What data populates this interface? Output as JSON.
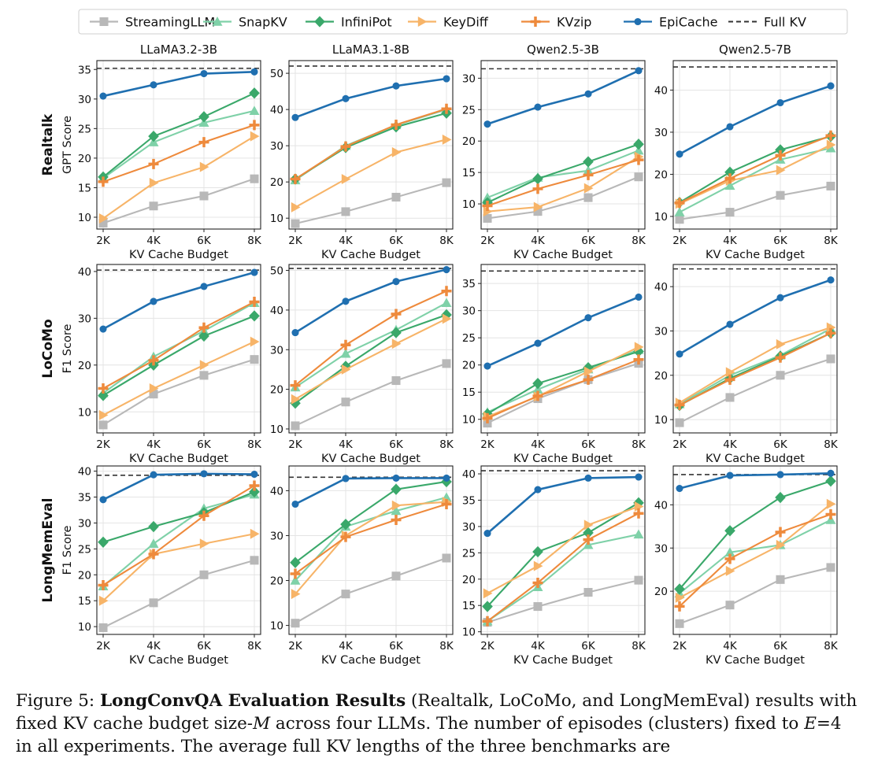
{
  "chart_data": [
    {
      "type": "line",
      "title": "LLaMA3.2-3B",
      "ylabel": "GPT Score",
      "row_label": "Realtalk",
      "xlabel": "KV Cache Budget",
      "categories": [
        "2K",
        "4K",
        "6K",
        "8K"
      ],
      "ylim": [
        8,
        36.5
      ],
      "yticks": [
        10,
        15,
        20,
        25,
        30,
        35
      ],
      "full_kv": 35.2,
      "series": [
        {
          "name": "StreamingLLM",
          "values": [
            9.0,
            11.9,
            13.6,
            16.5
          ]
        },
        {
          "name": "SnapKV",
          "values": [
            16.6,
            22.7,
            26.0,
            28.0
          ]
        },
        {
          "name": "InfiniPot",
          "values": [
            16.8,
            23.7,
            27.0,
            31.0
          ]
        },
        {
          "name": "KeyDiff",
          "values": [
            9.8,
            15.8,
            18.5,
            23.7
          ]
        },
        {
          "name": "KVzip",
          "values": [
            16.0,
            19.0,
            22.7,
            25.6
          ]
        },
        {
          "name": "EpiCache",
          "values": [
            30.5,
            32.4,
            34.3,
            34.6
          ]
        }
      ]
    },
    {
      "type": "line",
      "title": "LLaMA3.1-8B",
      "ylabel": "",
      "row_label": "",
      "xlabel": "KV Cache Budget",
      "categories": [
        "2K",
        "4K",
        "6K",
        "8K"
      ],
      "ylim": [
        7,
        53.5
      ],
      "yticks": [
        10,
        20,
        30,
        40,
        50
      ],
      "full_kv": 52.0,
      "series": [
        {
          "name": "StreamingLLM",
          "values": [
            8.5,
            11.8,
            15.8,
            19.8
          ]
        },
        {
          "name": "SnapKV",
          "values": [
            20.5,
            30.0,
            35.7,
            40.0
          ]
        },
        {
          "name": "InfiniPot",
          "values": [
            20.8,
            29.5,
            35.2,
            39.0
          ]
        },
        {
          "name": "KeyDiff",
          "values": [
            13.0,
            20.8,
            28.2,
            31.7
          ]
        },
        {
          "name": "KVzip",
          "values": [
            20.8,
            29.8,
            35.8,
            40.2
          ]
        },
        {
          "name": "EpiCache",
          "values": [
            37.8,
            43.0,
            46.5,
            48.5
          ]
        }
      ]
    },
    {
      "type": "line",
      "title": "Qwen2.5-3B",
      "ylabel": "",
      "row_label": "",
      "xlabel": "KV Cache Budget",
      "categories": [
        "2K",
        "4K",
        "6K",
        "8K"
      ],
      "ylim": [
        6,
        32.8
      ],
      "yticks": [
        10,
        15,
        20,
        25,
        30
      ],
      "full_kv": 31.5,
      "series": [
        {
          "name": "StreamingLLM",
          "values": [
            7.7,
            8.8,
            11.0,
            14.3
          ]
        },
        {
          "name": "SnapKV",
          "values": [
            11.0,
            14.2,
            15.3,
            18.5
          ]
        },
        {
          "name": "InfiniPot",
          "values": [
            10.2,
            14.0,
            16.7,
            19.5
          ]
        },
        {
          "name": "KeyDiff",
          "values": [
            8.8,
            9.5,
            12.5,
            17.5
          ]
        },
        {
          "name": "KVzip",
          "values": [
            9.7,
            12.4,
            14.6,
            17.0
          ]
        },
        {
          "name": "EpiCache",
          "values": [
            22.7,
            25.4,
            27.5,
            31.2
          ]
        }
      ]
    },
    {
      "type": "line",
      "title": "Qwen2.5-7B",
      "ylabel": "",
      "row_label": "",
      "xlabel": "KV Cache Budget",
      "categories": [
        "2K",
        "4K",
        "6K",
        "8K"
      ],
      "ylim": [
        7,
        47
      ],
      "yticks": [
        10,
        20,
        30,
        40
      ],
      "full_kv": 45.5,
      "series": [
        {
          "name": "StreamingLLM",
          "values": [
            9.3,
            11.0,
            15.0,
            17.2
          ]
        },
        {
          "name": "SnapKV",
          "values": [
            11.0,
            17.3,
            23.5,
            26.2
          ]
        },
        {
          "name": "InfiniPot",
          "values": [
            13.3,
            20.5,
            25.8,
            29.0
          ]
        },
        {
          "name": "KeyDiff",
          "values": [
            13.0,
            18.5,
            21.0,
            27.0
          ]
        },
        {
          "name": "KVzip",
          "values": [
            13.2,
            19.0,
            24.5,
            29.2
          ]
        },
        {
          "name": "EpiCache",
          "values": [
            24.8,
            31.3,
            37.0,
            41.0
          ]
        }
      ]
    },
    {
      "type": "line",
      "title": "",
      "ylabel": "F1 Score",
      "row_label": "LoCoMo",
      "xlabel": "KV Cache Budget",
      "categories": [
        "2K",
        "4K",
        "6K",
        "8K"
      ],
      "ylim": [
        5.5,
        41.5
      ],
      "yticks": [
        10,
        20,
        30,
        40
      ],
      "full_kv": 40.3,
      "series": [
        {
          "name": "StreamingLLM",
          "values": [
            7.2,
            13.8,
            17.8,
            21.2
          ]
        },
        {
          "name": "SnapKV",
          "values": [
            14.0,
            21.8,
            27.3,
            33.3
          ]
        },
        {
          "name": "InfiniPot",
          "values": [
            13.5,
            20.0,
            26.2,
            30.5
          ]
        },
        {
          "name": "KeyDiff",
          "values": [
            9.3,
            15.0,
            20.0,
            25.0
          ]
        },
        {
          "name": "KVzip",
          "values": [
            15.0,
            21.0,
            28.0,
            33.5
          ]
        },
        {
          "name": "EpiCache",
          "values": [
            27.7,
            33.6,
            36.8,
            39.8
          ]
        }
      ]
    },
    {
      "type": "line",
      "title": "",
      "ylabel": "",
      "row_label": "",
      "xlabel": "KV Cache Budget",
      "categories": [
        "2K",
        "4K",
        "6K",
        "8K"
      ],
      "ylim": [
        9,
        51.5
      ],
      "yticks": [
        10,
        20,
        30,
        40,
        50
      ],
      "full_kv": 50.5,
      "series": [
        {
          "name": "StreamingLLM",
          "values": [
            10.8,
            16.8,
            22.2,
            26.5
          ]
        },
        {
          "name": "SnapKV",
          "values": [
            20.5,
            29.0,
            35.0,
            41.8
          ]
        },
        {
          "name": "InfiniPot",
          "values": [
            16.5,
            25.8,
            34.3,
            38.8
          ]
        },
        {
          "name": "KeyDiff",
          "values": [
            17.5,
            25.0,
            31.5,
            37.8
          ]
        },
        {
          "name": "KVzip",
          "values": [
            21.0,
            31.2,
            39.0,
            44.8
          ]
        },
        {
          "name": "EpiCache",
          "values": [
            34.3,
            42.2,
            47.2,
            50.2
          ]
        }
      ]
    },
    {
      "type": "line",
      "title": "",
      "ylabel": "",
      "row_label": "",
      "xlabel": "KV Cache Budget",
      "categories": [
        "2K",
        "4K",
        "6K",
        "8K"
      ],
      "ylim": [
        7.5,
        38.5
      ],
      "yticks": [
        10,
        15,
        20,
        25,
        30,
        35
      ],
      "full_kv": 37.3,
      "series": [
        {
          "name": "StreamingLLM",
          "values": [
            9.3,
            13.8,
            17.3,
            20.3
          ]
        },
        {
          "name": "SnapKV",
          "values": [
            11.3,
            15.5,
            19.2,
            22.8
          ]
        },
        {
          "name": "InfiniPot",
          "values": [
            11.0,
            16.6,
            19.5,
            22.5
          ]
        },
        {
          "name": "KeyDiff",
          "values": [
            10.5,
            14.2,
            18.8,
            23.3
          ]
        },
        {
          "name": "KVzip",
          "values": [
            10.2,
            14.3,
            17.3,
            21.0
          ]
        },
        {
          "name": "EpiCache",
          "values": [
            19.8,
            24.0,
            28.7,
            32.5
          ]
        }
      ]
    },
    {
      "type": "line",
      "title": "",
      "ylabel": "",
      "row_label": "",
      "xlabel": "KV Cache Budget",
      "categories": [
        "2K",
        "4K",
        "6K",
        "8K"
      ],
      "ylim": [
        7,
        45
      ],
      "yticks": [
        10,
        20,
        30,
        40
      ],
      "full_kv": 44.0,
      "series": [
        {
          "name": "StreamingLLM",
          "values": [
            9.3,
            15.0,
            20.0,
            23.7
          ]
        },
        {
          "name": "SnapKV",
          "values": [
            13.5,
            20.0,
            24.5,
            30.5
          ]
        },
        {
          "name": "InfiniPot",
          "values": [
            13.2,
            19.3,
            24.3,
            29.5
          ]
        },
        {
          "name": "KeyDiff",
          "values": [
            13.8,
            20.7,
            27.0,
            30.8
          ]
        },
        {
          "name": "KVzip",
          "values": [
            13.3,
            19.0,
            24.0,
            29.5
          ]
        },
        {
          "name": "EpiCache",
          "values": [
            24.8,
            31.5,
            37.5,
            41.5
          ]
        }
      ]
    },
    {
      "type": "line",
      "title": "",
      "ylabel": "F1 Score",
      "row_label": "LongMemEval",
      "xlabel": "KV Cache Budget",
      "categories": [
        "2K",
        "4K",
        "6K",
        "8K"
      ],
      "ylim": [
        8.5,
        41
      ],
      "yticks": [
        10,
        15,
        20,
        25,
        30,
        35,
        40
      ],
      "full_kv": 39.2,
      "series": [
        {
          "name": "StreamingLLM",
          "values": [
            9.8,
            14.6,
            20.0,
            22.8
          ]
        },
        {
          "name": "SnapKV",
          "values": [
            17.8,
            26.0,
            32.8,
            35.5
          ]
        },
        {
          "name": "InfiniPot",
          "values": [
            26.3,
            29.3,
            32.0,
            36.0
          ]
        },
        {
          "name": "KeyDiff",
          "values": [
            15.0,
            24.0,
            26.0,
            27.9
          ]
        },
        {
          "name": "KVzip",
          "values": [
            18.0,
            24.0,
            31.4,
            37.2
          ]
        },
        {
          "name": "EpiCache",
          "values": [
            34.5,
            39.3,
            39.5,
            39.4
          ]
        }
      ]
    },
    {
      "type": "line",
      "title": "",
      "ylabel": "",
      "row_label": "",
      "xlabel": "KV Cache Budget",
      "categories": [
        "2K",
        "4K",
        "6K",
        "8K"
      ],
      "ylim": [
        8,
        45.5
      ],
      "yticks": [
        10,
        20,
        30,
        40
      ],
      "full_kv": 43.0,
      "series": [
        {
          "name": "StreamingLLM",
          "values": [
            10.5,
            17.0,
            21.0,
            25.0
          ]
        },
        {
          "name": "SnapKV",
          "values": [
            20.0,
            32.0,
            35.5,
            38.5
          ]
        },
        {
          "name": "InfiniPot",
          "values": [
            24.0,
            32.5,
            40.3,
            42.0
          ]
        },
        {
          "name": "KeyDiff",
          "values": [
            17.0,
            30.0,
            36.7,
            37.5
          ]
        },
        {
          "name": "KVzip",
          "values": [
            21.5,
            29.7,
            33.5,
            37.0
          ]
        },
        {
          "name": "EpiCache",
          "values": [
            37.0,
            42.7,
            42.8,
            42.8
          ]
        }
      ]
    },
    {
      "type": "line",
      "title": "",
      "ylabel": "",
      "row_label": "",
      "xlabel": "KV Cache Budget",
      "categories": [
        "2K",
        "4K",
        "6K",
        "8K"
      ],
      "ylim": [
        9.5,
        41.5
      ],
      "yticks": [
        10,
        15,
        20,
        25,
        30,
        35,
        40
      ],
      "full_kv": 40.6,
      "series": [
        {
          "name": "StreamingLLM",
          "values": [
            11.8,
            14.8,
            17.5,
            19.8
          ]
        },
        {
          "name": "SnapKV",
          "values": [
            12.0,
            18.5,
            26.5,
            28.5
          ]
        },
        {
          "name": "InfiniPot",
          "values": [
            14.8,
            25.2,
            28.8,
            34.5
          ]
        },
        {
          "name": "KeyDiff",
          "values": [
            17.3,
            22.5,
            30.3,
            33.8
          ]
        },
        {
          "name": "KVzip",
          "values": [
            12.0,
            19.3,
            27.5,
            32.5
          ]
        },
        {
          "name": "EpiCache",
          "values": [
            28.7,
            37.0,
            39.2,
            39.4
          ]
        }
      ]
    },
    {
      "type": "line",
      "title": "",
      "ylabel": "",
      "row_label": "",
      "xlabel": "KV Cache Budget",
      "categories": [
        "2K",
        "4K",
        "6K",
        "8K"
      ],
      "ylim": [
        10,
        49
      ],
      "yticks": [
        20,
        30,
        40
      ],
      "full_kv": 47.0,
      "series": [
        {
          "name": "StreamingLLM",
          "values": [
            12.5,
            16.8,
            22.7,
            25.5
          ]
        },
        {
          "name": "SnapKV",
          "values": [
            19.5,
            29.0,
            30.7,
            36.5
          ]
        },
        {
          "name": "InfiniPot",
          "values": [
            20.5,
            34.0,
            41.7,
            45.5
          ]
        },
        {
          "name": "KeyDiff",
          "values": [
            18.5,
            24.7,
            30.7,
            40.2
          ]
        },
        {
          "name": "KVzip",
          "values": [
            16.5,
            27.5,
            33.7,
            37.8
          ]
        },
        {
          "name": "EpiCache",
          "values": [
            43.8,
            46.8,
            47.0,
            47.3
          ]
        }
      ]
    }
  ],
  "legend": {
    "placement": "top",
    "items": [
      {
        "name": "StreamingLLM",
        "color": "#b8b8b8",
        "marker": "square"
      },
      {
        "name": "SnapKV",
        "color": "#7fd1a8",
        "marker": "triangle"
      },
      {
        "name": "InfiniPot",
        "color": "#3aa86a",
        "marker": "diamond"
      },
      {
        "name": "KeyDiff",
        "color": "#f7b468",
        "marker": "triangle-right"
      },
      {
        "name": "KVzip",
        "color": "#ee8a3c",
        "marker": "plus"
      },
      {
        "name": "EpiCache",
        "color": "#1f6fb0",
        "marker": "circle"
      },
      {
        "name": "Full KV",
        "color": "#333333",
        "marker": "dashed-line"
      }
    ]
  },
  "caption": {
    "label": "Figure 5:",
    "bold": "LongConvQA Evaluation Results",
    "line1_rest": " (Realtalk, LoCoMo, and LongMemEval) results with",
    "line2a": "fixed KV cache budget size-",
    "var_m": "M",
    "line2b": " across four LLMs. The number of episodes (clusters) fixed to ",
    "var_e": "E",
    "line2c": "=4",
    "line3": "in all experiments. The average full KV lengths of the three benchmarks are"
  }
}
